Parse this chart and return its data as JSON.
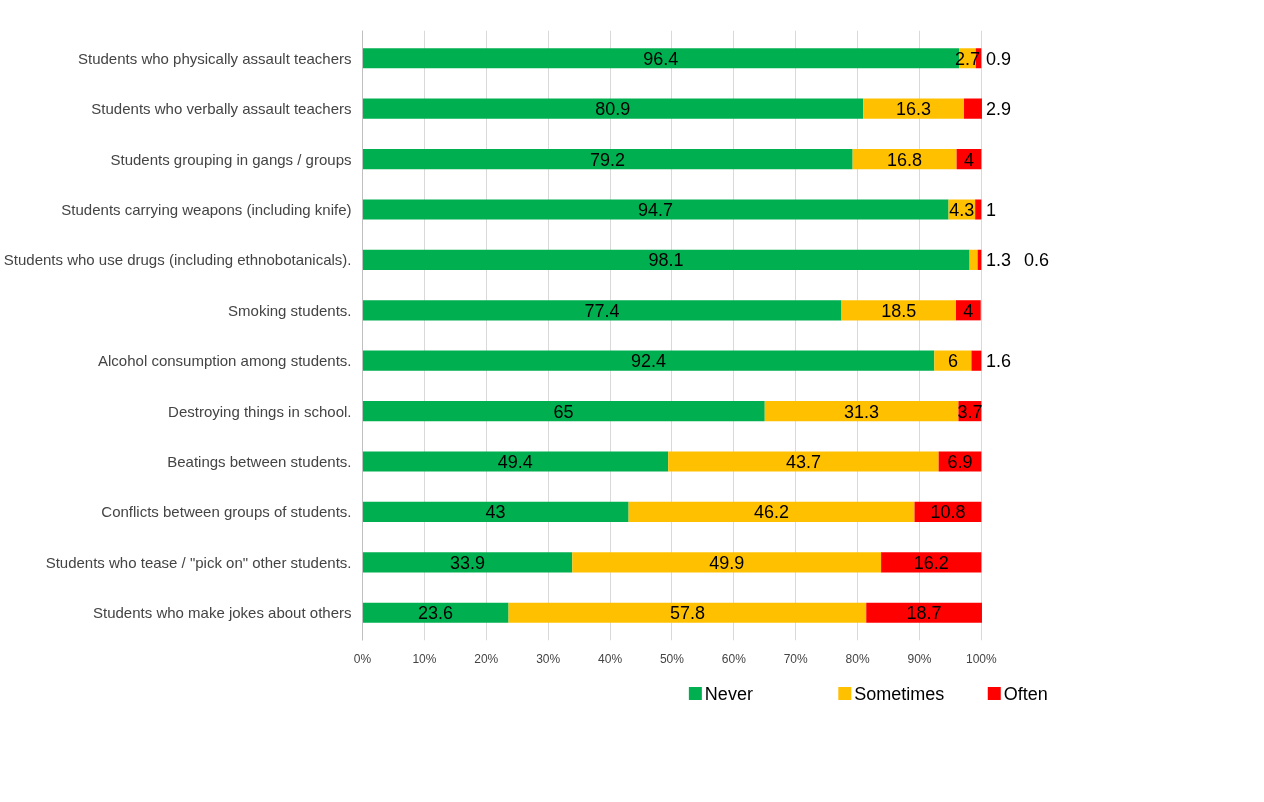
{
  "chart_data": {
    "type": "bar",
    "orientation": "horizontal",
    "stacked": true,
    "data_labels": true,
    "grid": "x",
    "legend": "bottom",
    "categories": [
      "Students who physically assault teachers",
      "Students who verbally assault teachers",
      "Students grouping in gangs / groups",
      "Students carrying weapons (including knife)",
      "Students who use drugs (including ethnobotanicals).",
      "Smoking students.",
      "Alcohol consumption among students.",
      "Destroying things in school.",
      "Beatings between students.",
      "Conflicts between groups of students.",
      "Students who tease / \"pick on\" other students.",
      "Students who make jokes about others"
    ],
    "series": [
      {
        "name": "Never",
        "color": "#00b050",
        "values": [
          96.4,
          80.9,
          79.2,
          94.7,
          98.1,
          77.4,
          92.4,
          65,
          49.4,
          43,
          33.9,
          23.6
        ]
      },
      {
        "name": "Sometimes",
        "color": "#ffc000",
        "values": [
          2.7,
          16.3,
          16.8,
          4.3,
          1.3,
          18.5,
          6,
          31.3,
          43.7,
          46.2,
          49.9,
          57.8
        ]
      },
      {
        "name": "Often",
        "color": "#ff0000",
        "values": [
          0.9,
          2.9,
          4,
          1,
          0.6,
          4,
          1.6,
          3.7,
          6.9,
          10.8,
          16.2,
          18.7
        ]
      }
    ],
    "xlim": [
      0,
      100.1
    ],
    "xticks": [
      {
        "value": 0,
        "label": "0%"
      },
      {
        "value": 10,
        "label": "10%"
      },
      {
        "value": 20,
        "label": "20%"
      },
      {
        "value": 30,
        "label": "30%"
      },
      {
        "value": 40,
        "label": "40%"
      },
      {
        "value": 50,
        "label": "50%"
      },
      {
        "value": 60,
        "label": "60%"
      },
      {
        "value": 70,
        "label": "70%"
      },
      {
        "value": 80,
        "label": "80%"
      },
      {
        "value": 90,
        "label": "90%"
      },
      {
        "value": 100,
        "label": "100%"
      }
    ]
  }
}
